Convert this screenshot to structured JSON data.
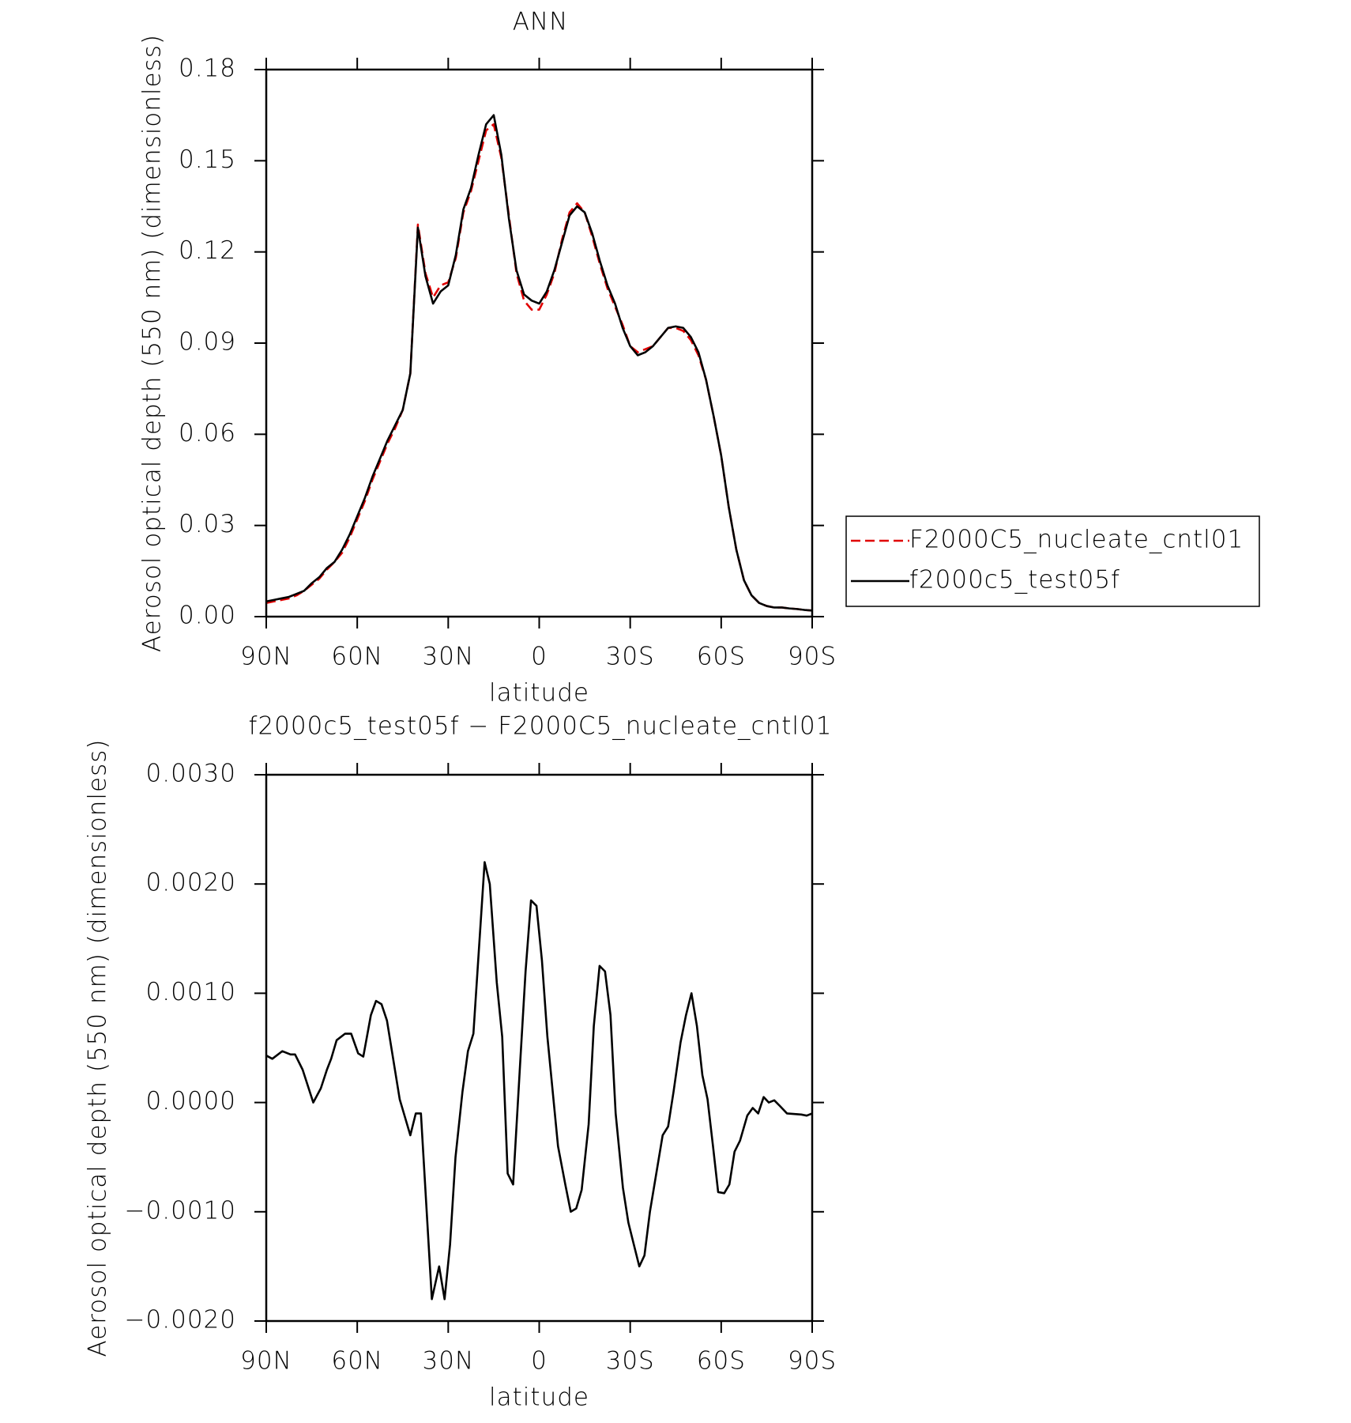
{
  "chart_data": [
    {
      "type": "line",
      "title": "ANN",
      "xlabel": "latitude",
      "ylabel": "Aerosol optical depth (550 nm) (dimensionless)",
      "x": [
        90,
        87.5,
        85,
        82.5,
        80,
        77.5,
        75,
        72.5,
        70,
        67.5,
        65,
        62.5,
        60,
        57.5,
        55,
        52.5,
        50,
        47.5,
        45,
        42.5,
        40,
        37.5,
        35,
        32.5,
        30,
        27.5,
        25,
        22.5,
        20,
        17.5,
        15,
        12.5,
        10,
        7.5,
        5,
        2.5,
        0,
        -2.5,
        -5,
        -7.5,
        -10,
        -12.5,
        -15,
        -17.5,
        -20,
        -22.5,
        -25,
        -27.5,
        -30,
        -32.5,
        -35,
        -37.5,
        -40,
        -42.5,
        -45,
        -47.5,
        -50,
        -52.5,
        -55,
        -57.5,
        -60,
        -62.5,
        -65,
        -67.5,
        -70,
        -72.5,
        -75,
        -77.5,
        -80,
        -82.5,
        -85,
        -87.5,
        -90
      ],
      "series": [
        {
          "name": "F2000C5_nucleate_cntl01",
          "color": "#e00000",
          "line_style": "dashed",
          "values": [
            0.0045,
            0.005,
            0.0055,
            0.006,
            0.007,
            0.0085,
            0.0105,
            0.0125,
            0.0155,
            0.018,
            0.021,
            0.026,
            0.032,
            0.038,
            0.045,
            0.051,
            0.057,
            0.062,
            0.068,
            0.08,
            0.129,
            0.113,
            0.105,
            0.109,
            0.11,
            0.118,
            0.133,
            0.14,
            0.15,
            0.16,
            0.162,
            0.151,
            0.132,
            0.113,
            0.104,
            0.101,
            0.101,
            0.106,
            0.113,
            0.124,
            0.133,
            0.136,
            0.133,
            0.125,
            0.116,
            0.108,
            0.102,
            0.096,
            0.089,
            0.087,
            0.088,
            0.089,
            0.092,
            0.095,
            0.095,
            0.094,
            0.091,
            0.086,
            0.078,
            0.066,
            0.053,
            0.036,
            0.022,
            0.012,
            0.007,
            0.0045,
            0.0035,
            0.003,
            0.003,
            0.0027,
            0.0025,
            0.0022,
            0.002
          ]
        },
        {
          "name": "f2000c5_test05f",
          "color": "#000000",
          "line_style": "solid",
          "values": [
            0.005,
            0.0055,
            0.006,
            0.0065,
            0.0075,
            0.0085,
            0.011,
            0.013,
            0.016,
            0.018,
            0.022,
            0.027,
            0.033,
            0.039,
            0.046,
            0.052,
            0.058,
            0.063,
            0.068,
            0.08,
            0.128,
            0.112,
            0.103,
            0.107,
            0.109,
            0.119,
            0.134,
            0.141,
            0.152,
            0.162,
            0.165,
            0.152,
            0.131,
            0.114,
            0.106,
            0.104,
            0.103,
            0.107,
            0.114,
            0.123,
            0.132,
            0.135,
            0.133,
            0.126,
            0.117,
            0.109,
            0.103,
            0.095,
            0.089,
            0.086,
            0.087,
            0.089,
            0.092,
            0.095,
            0.0955,
            0.095,
            0.092,
            0.087,
            0.078,
            0.066,
            0.053,
            0.036,
            0.022,
            0.012,
            0.007,
            0.0045,
            0.0035,
            0.003,
            0.003,
            0.0027,
            0.0025,
            0.0022,
            0.002
          ]
        }
      ],
      "xlim": [
        90,
        -90
      ],
      "xticks": [
        {
          "value": 90,
          "label": "90N"
        },
        {
          "value": 60,
          "label": "60N"
        },
        {
          "value": 30,
          "label": "30N"
        },
        0,
        {
          "value": -30,
          "label": "30S"
        },
        {
          "value": -60,
          "label": "60S"
        },
        {
          "value": -90,
          "label": "90S"
        }
      ],
      "ylim": [
        0,
        0.18
      ],
      "yticks": [
        {
          "value": 0,
          "label": "0.00"
        },
        0.03,
        0.06,
        0.09,
        0.12,
        0.15,
        0.18
      ],
      "legend": "right"
    },
    {
      "type": "line",
      "title": "f2000c5_test05f − F2000C5_nucleate_cntl01",
      "xlabel": "latitude",
      "ylabel": "Aerosol optical depth (550 nm) (dimensionless)",
      "color": "#000000",
      "x": [
        90,
        88,
        84.7,
        82,
        80.5,
        78,
        74.5,
        72,
        70,
        68.6,
        66.8,
        64,
        62,
        59.7,
        58,
        55.5,
        53.8,
        52,
        50.2,
        46,
        42.5,
        40.7,
        39,
        35.4,
        33,
        31.2,
        29.4,
        27.6,
        25.3,
        23.5,
        21.7,
        18,
        16.3,
        14,
        12.2,
        10.4,
        8.6,
        6.2,
        4.5,
        2.7,
        0.9,
        -0.9,
        -2.7,
        -6.2,
        -8.6,
        -10.4,
        -12.2,
        -14,
        -16.3,
        -18,
        -19.9,
        -21.7,
        -23.5,
        -25.2,
        -27.6,
        -29.4,
        -31.2,
        -33,
        -34.7,
        -36.5,
        -38.9,
        -40.7,
        -42.5,
        -44.3,
        -46.6,
        -48.4,
        -50.2,
        -52,
        -53.8,
        -55.5,
        -57.3,
        -59,
        -61,
        -62.7,
        -64.4,
        -66.2,
        -68.6,
        -70.4,
        -72.2,
        -74,
        -75.7,
        -77.5,
        -79.3,
        -81.7,
        -86.4,
        -88.2,
        -90
      ],
      "values": [
        0.00043,
        0.0004,
        0.00047,
        0.00044,
        0.00044,
        0.0003,
        0,
        0.00013,
        0.0003,
        0.0004,
        0.00057,
        0.00063,
        0.00063,
        0.00045,
        0.00042,
        0.0008,
        0.00093,
        0.0009,
        0.00075,
        3e-05,
        -0.0003,
        -0.0001,
        -0.0001,
        -0.0018,
        -0.0015,
        -0.0018,
        -0.0013,
        -0.0005,
        0.0001,
        0.00047,
        0.00063,
        0.0022,
        0.002,
        0.0011,
        0.0006,
        -0.00065,
        -0.00075,
        0.0004,
        0.0012,
        0.00185,
        0.0018,
        0.0013,
        0.0006,
        -0.0004,
        -0.00075,
        -0.001,
        -0.00097,
        -0.0008,
        -0.0002,
        0.0007,
        0.00125,
        0.0012,
        0.0008,
        -0.0001,
        -0.00078,
        -0.0011,
        -0.0013,
        -0.0015,
        -0.0014,
        -0.001,
        -0.0006,
        -0.0003,
        -0.00022,
        0.0001,
        0.00055,
        0.0008,
        0.001,
        0.0007,
        0.00025,
        3e-05,
        -0.0004,
        -0.00082,
        -0.00083,
        -0.00075,
        -0.00045,
        -0.00035,
        -0.00012,
        -5e-05,
        -0.0001,
        5e-05,
        0,
        2e-05,
        -3e-05,
        -0.0001,
        -0.00011,
        -0.00012,
        -0.0001
      ],
      "xlim": [
        90,
        -90
      ],
      "xticks": [
        {
          "value": 90,
          "label": "90N"
        },
        {
          "value": 60,
          "label": "60N"
        },
        {
          "value": 30,
          "label": "30N"
        },
        0,
        {
          "value": -30,
          "label": "30S"
        },
        {
          "value": -60,
          "label": "60S"
        },
        {
          "value": -90,
          "label": "90S"
        }
      ],
      "ylim": [
        -0.002,
        0.003
      ],
      "yticks": [
        {
          "value": -0.002,
          "label": "−0.0020"
        },
        {
          "value": -0.001,
          "label": "−0.0010"
        },
        {
          "value": 0,
          "label": "0.0000"
        },
        {
          "value": 0.001,
          "label": "0.0010"
        },
        {
          "value": 0.002,
          "label": "0.0020"
        },
        {
          "value": 0.003,
          "label": "0.0030"
        }
      ]
    }
  ]
}
